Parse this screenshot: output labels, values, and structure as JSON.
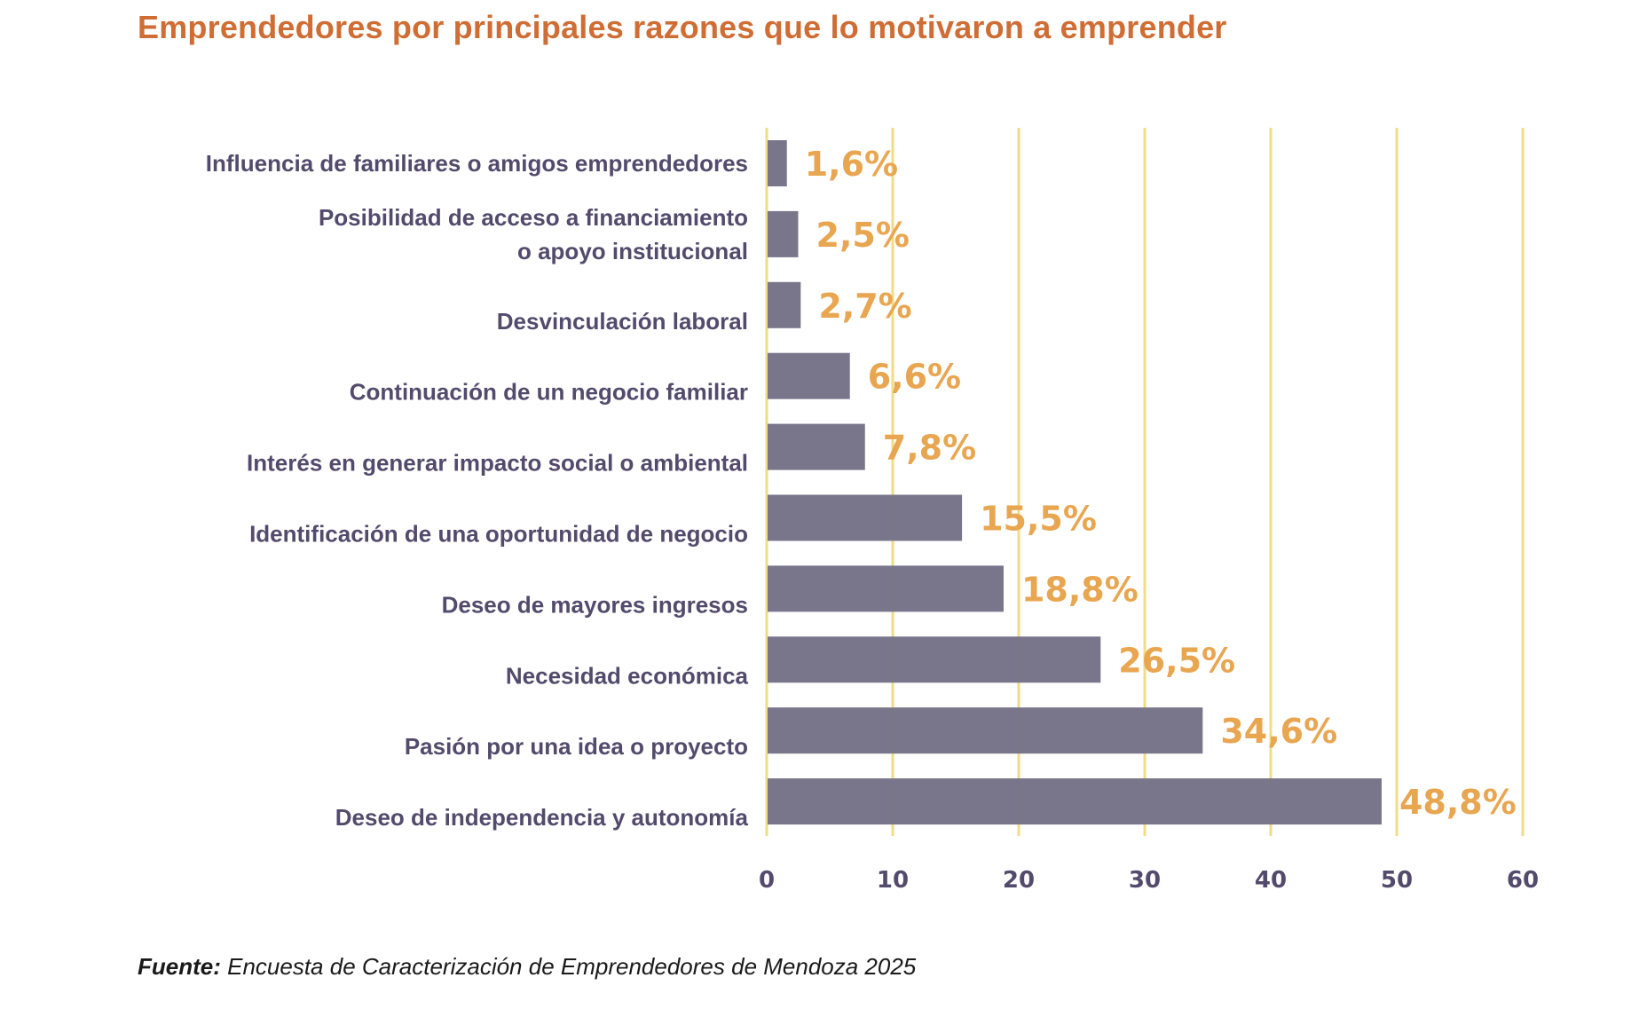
{
  "chart_data": {
    "type": "bar",
    "orientation": "horizontal",
    "title": "Emprendedores por principales razones que lo motivaron a emprender",
    "categories": [
      [
        "Influencia de familiares o amigos emprendedores"
      ],
      [
        "Posibilidad de acceso a financiamiento",
        "o apoyo institucional"
      ],
      [
        "Desvinculación laboral"
      ],
      [
        "Continuación de un negocio familiar"
      ],
      [
        "Interés en generar impacto social o ambiental"
      ],
      [
        "Identificación de una oportunidad de negocio"
      ],
      [
        "Deseo de mayores ingresos"
      ],
      [
        "Necesidad económica"
      ],
      [
        "Pasión por una idea o proyecto"
      ],
      [
        "Deseo de independencia y autonomía"
      ]
    ],
    "values": [
      1.6,
      2.5,
      2.7,
      6.6,
      7.8,
      15.5,
      18.8,
      26.5,
      34.6,
      48.8
    ],
    "value_labels": [
      "1,6%",
      "2,5%",
      "2,7%",
      "6,6%",
      "7,8%",
      "15,5%",
      "18,8%",
      "26,5%",
      "34,6%",
      "48,8%"
    ],
    "xlabel": "",
    "ylabel": "",
    "xlim": [
      0,
      60
    ],
    "xticks": [
      0,
      10,
      20,
      30,
      40,
      50,
      60
    ],
    "xtick_labels": [
      "0",
      "10",
      "20",
      "30",
      "40",
      "50",
      "60"
    ],
    "grid": "vertical",
    "legend": "none",
    "colors": {
      "bar": "#767389",
      "value_label": "#e9a651",
      "gridline": "#f0dc84",
      "category_label": "#524b6c",
      "title": "#cf6d34"
    }
  },
  "source": {
    "lead": "Fuente:",
    "text": " Encuesta de Caracterización de Emprendedores de Mendoza 2025"
  }
}
